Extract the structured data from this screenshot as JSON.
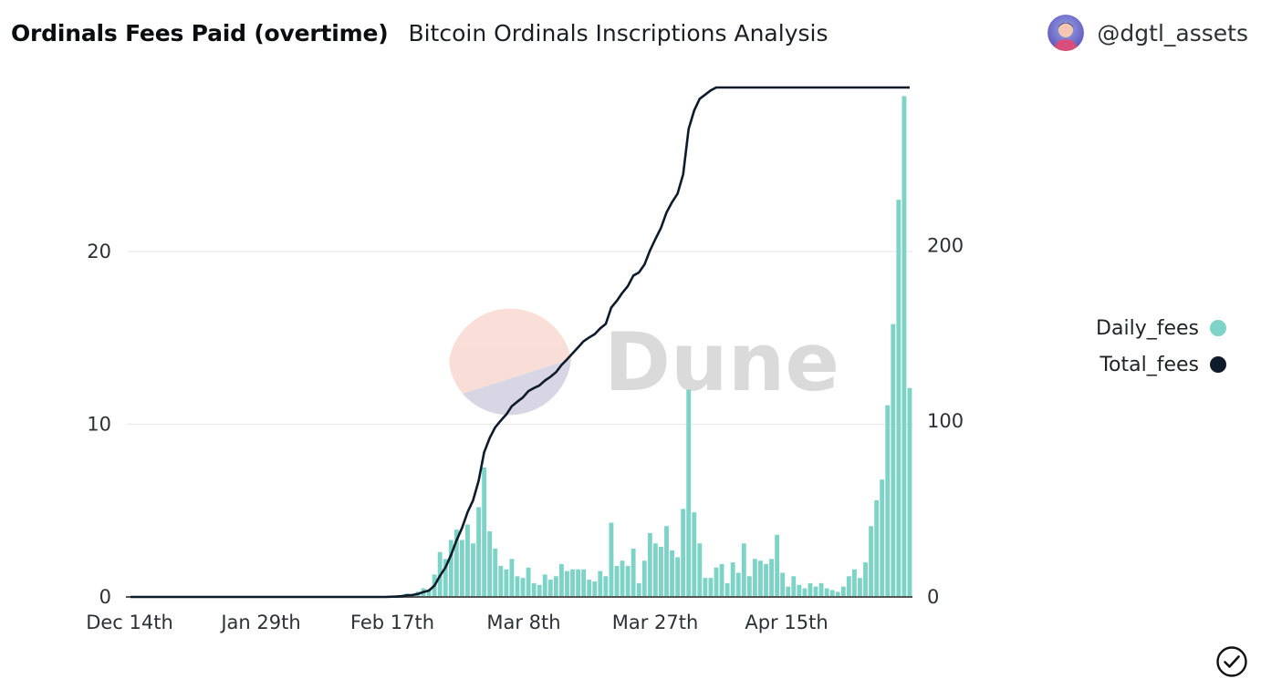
{
  "header": {
    "title": "Ordinals Fees Paid (overtime)",
    "subtitle": "Bitcoin Ordinals Inscriptions Analysis",
    "username": "@dgtl_assets"
  },
  "watermark": {
    "text": "Dune"
  },
  "legend": {
    "items": [
      {
        "label": "Daily_fees",
        "color": "#7dd3c6"
      },
      {
        "label": "Total_fees",
        "color": "#0e1b2b"
      }
    ]
  },
  "chart_data": {
    "type": "bar+line",
    "start_date": "2022-12-14",
    "xticks": [
      "Dec 14th",
      "Jan 29th",
      "Feb 17th",
      "Mar 8th",
      "Mar 27th",
      "Apr 15th"
    ],
    "y_left": {
      "ticks": [
        0,
        10,
        20
      ],
      "range": [
        0,
        29.5
      ]
    },
    "y_right": {
      "ticks": [
        0,
        100,
        200
      ],
      "range": [
        0,
        290
      ]
    },
    "series": [
      {
        "name": "Daily_fees",
        "type": "bar",
        "axis": "left",
        "color": "#7dd3c6",
        "values": [
          0,
          0,
          0,
          0,
          0,
          0,
          0,
          0,
          0,
          0,
          0,
          0,
          0,
          0,
          0,
          0,
          0,
          0,
          0,
          0,
          0,
          0,
          0,
          0,
          0,
          0,
          0,
          0,
          0,
          0,
          0,
          0,
          0,
          0,
          0,
          0,
          0,
          0,
          0,
          0,
          0,
          0,
          0,
          0,
          0,
          0,
          0,
          0.05,
          0.05,
          0.1,
          0.2,
          0.1,
          0.3,
          0.5,
          0.4,
          1.3,
          2.6,
          2.2,
          3.3,
          3.9,
          3.3,
          4.2,
          3.1,
          5.2,
          7.5,
          3.8,
          2.8,
          1.8,
          1.6,
          2.2,
          1.2,
          1.1,
          1.7,
          0.8,
          0.7,
          1.3,
          1.0,
          1.2,
          1.9,
          1.5,
          1.6,
          1.6,
          1.6,
          1.0,
          0.9,
          1.5,
          1.2,
          4.3,
          1.8,
          2.1,
          1.8,
          2.8,
          0.8,
          2.1,
          3.7,
          3.1,
          2.9,
          4.1,
          2.7,
          2.3,
          5.1,
          12.0,
          4.9,
          3.1,
          1.1,
          1.1,
          1.7,
          1.9,
          0.8,
          2.0,
          1.4,
          3.1,
          1.2,
          2.2,
          2.1,
          1.9,
          2.2,
          3.6,
          1.4,
          0.6,
          1.2,
          0.7,
          0.5,
          0.8,
          0.6,
          0.8,
          0.5,
          0.4,
          0.3,
          0.6,
          1.2,
          1.6,
          1.1,
          2.0,
          4.1,
          5.6,
          6.8,
          11.1,
          15.8,
          23.0,
          29.0,
          12.1
        ]
      },
      {
        "name": "Total_fees",
        "type": "line",
        "axis": "right",
        "color": "#0e1b2b"
      }
    ]
  }
}
